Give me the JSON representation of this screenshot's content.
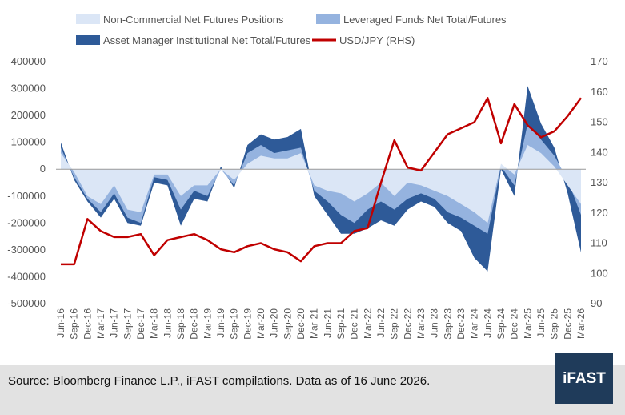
{
  "chart_data": {
    "type": "area",
    "legend": [
      {
        "label": "Non-Commercial Net Futures Positions",
        "color": "#dbe6f6",
        "kind": "area"
      },
      {
        "label": "Leveraged Funds Net Total/Futures",
        "color": "#95b3df",
        "kind": "area"
      },
      {
        "label": "Asset Manager Institutional Net Total/Futures",
        "color": "#2e5a98",
        "kind": "area"
      },
      {
        "label": "USD/JPY (RHS)",
        "color": "#c00000",
        "kind": "line"
      }
    ],
    "legend_position": "top",
    "y_left_ticks": [
      "400000",
      "300000",
      "200000",
      "100000",
      "0",
      "-100000",
      "-200000",
      "-300000",
      "-400000",
      "-500000"
    ],
    "y_left_range": [
      -500000,
      400000
    ],
    "y_right_ticks": [
      "170",
      "160",
      "150",
      "140",
      "130",
      "120",
      "110",
      "100",
      "90"
    ],
    "y_right_range": [
      90,
      170
    ],
    "x_tick_labels": [
      "Jun-16",
      "Sep-16",
      "Dec-16",
      "Mar-17",
      "Jun-17",
      "Sep-17",
      "Dec-17",
      "Mar-18",
      "Jun-18",
      "Sep-18",
      "Dec-18",
      "Mar-19",
      "Jun-19",
      "Sep-19",
      "Dec-19",
      "Mar-20",
      "Jun-20",
      "Sep-20",
      "Dec-20",
      "Mar-21",
      "Jun-21",
      "Sep-21",
      "Dec-21",
      "Mar-22",
      "Jun-22",
      "Sep-22",
      "Dec-22",
      "Mar-23",
      "Jun-23",
      "Sep-23",
      "Dec-23",
      "Mar-24",
      "Jun-24",
      "Sep-24",
      "Dec-24",
      "Mar-25",
      "Jun-25",
      "Sep-25",
      "Dec-25",
      "Mar-26"
    ],
    "grid": false,
    "series": [
      {
        "name": "Non-Commercial Net Futures Positions",
        "values": [
          60000,
          -10000,
          -100000,
          -130000,
          -60000,
          -150000,
          -160000,
          -20000,
          -20000,
          -100000,
          -60000,
          -60000,
          0,
          -40000,
          20000,
          50000,
          40000,
          40000,
          60000,
          -60000,
          -80000,
          -90000,
          -120000,
          -90000,
          -50000,
          -100000,
          -50000,
          -60000,
          -80000,
          -100000,
          -130000,
          -160000,
          -200000,
          20000,
          -20000,
          90000,
          60000,
          10000,
          -60000,
          -130000
        ]
      },
      {
        "name": "Leveraged Funds Net Total/Futures",
        "values": [
          80000,
          -30000,
          -110000,
          -160000,
          -90000,
          -180000,
          -200000,
          -30000,
          -40000,
          -150000,
          -80000,
          -100000,
          0,
          -60000,
          60000,
          90000,
          60000,
          70000,
          80000,
          -80000,
          -120000,
          -170000,
          -200000,
          -150000,
          -120000,
          -150000,
          -110000,
          -90000,
          -110000,
          -160000,
          -180000,
          -210000,
          -240000,
          10000,
          -60000,
          170000,
          110000,
          50000,
          -40000,
          -170000
        ]
      },
      {
        "name": "Asset Manager Institutional Net Total/Futures",
        "values": [
          100000,
          -40000,
          -120000,
          -180000,
          -110000,
          -200000,
          -210000,
          -50000,
          -60000,
          -210000,
          -110000,
          -120000,
          10000,
          -70000,
          90000,
          130000,
          110000,
          120000,
          150000,
          -100000,
          -170000,
          -240000,
          -240000,
          -220000,
          -190000,
          -210000,
          -150000,
          -120000,
          -140000,
          -200000,
          -230000,
          -330000,
          -380000,
          0,
          -100000,
          310000,
          170000,
          80000,
          -90000,
          -310000
        ]
      },
      {
        "name": "USD/JPY (RHS)",
        "values": [
          103,
          103,
          118,
          114,
          112,
          112,
          113,
          106,
          111,
          112,
          113,
          111,
          108,
          107,
          109,
          110,
          108,
          107,
          104,
          109,
          110,
          110,
          114,
          115,
          130,
          144,
          135,
          134,
          140,
          146,
          148,
          150,
          158,
          143,
          156,
          149,
          145,
          147,
          152,
          158
        ]
      }
    ]
  },
  "footer": {
    "source": "Source: Bloomberg Finance L.P., iFAST compilations. Data as of 16 June 2026.",
    "brand": "iFAST"
  }
}
